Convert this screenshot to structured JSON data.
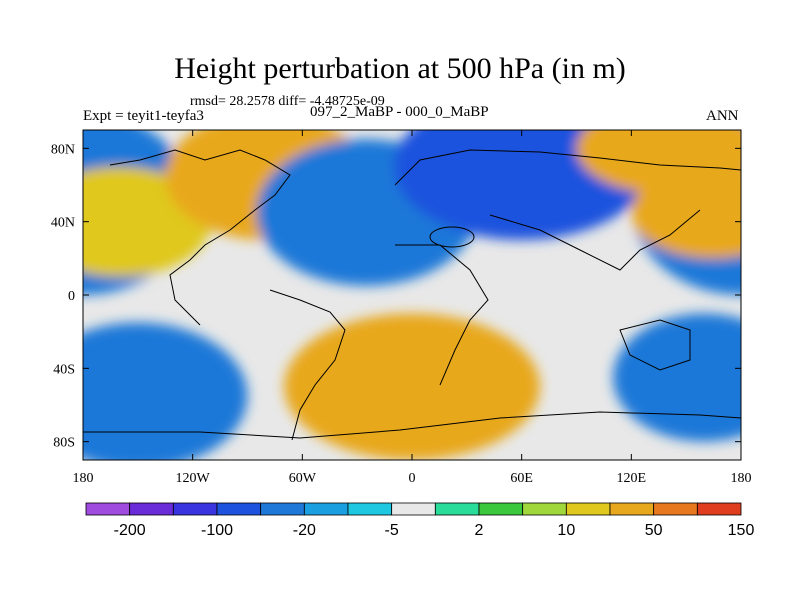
{
  "chart_data": {
    "type": "heatmap",
    "title": "Height perturbation at 500 hPa (in m)",
    "stats_text": "rmsd= 28.2578 diff= -4.48725e-09",
    "left_label": "Expt = teyit1-teyfa3",
    "center_label": "097_2_MaBP - 000_0_MaBP",
    "right_label": "ANN",
    "x_range": [
      -180,
      180
    ],
    "y_range": [
      -90,
      90
    ],
    "x_ticks": [
      {
        "value": -180,
        "label": "180"
      },
      {
        "value": -120,
        "label": "120W"
      },
      {
        "value": -60,
        "label": "60W"
      },
      {
        "value": 0,
        "label": "0"
      },
      {
        "value": 60,
        "label": "60E"
      },
      {
        "value": 120,
        "label": "120E"
      },
      {
        "value": 180,
        "label": "180"
      }
    ],
    "y_ticks": [
      {
        "value": 80,
        "label": "80N"
      },
      {
        "value": 40,
        "label": "40N"
      },
      {
        "value": 0,
        "label": "0"
      },
      {
        "value": -40,
        "label": "40S"
      },
      {
        "value": -80,
        "label": "80S"
      }
    ],
    "colorbar": {
      "colors": [
        "#a04be0",
        "#6a2bd8",
        "#3a34e0",
        "#1d52de",
        "#1d78d8",
        "#1aa0e0",
        "#1ec8e0",
        "#e8e8e8",
        "#2adc9a",
        "#3cc83c",
        "#a0d83c",
        "#e0c81e",
        "#e8a81e",
        "#e8781e",
        "#e03c1e"
      ],
      "labels": [
        {
          "after_index": 1,
          "text": "-200"
        },
        {
          "after_index": 3,
          "text": "-100"
        },
        {
          "after_index": 5,
          "text": "-20"
        },
        {
          "after_index": 7,
          "text": "-5"
        },
        {
          "after_index": 9,
          "text": "2"
        },
        {
          "after_index": 11,
          "text": "10"
        },
        {
          "after_index": 13,
          "text": "50"
        },
        {
          "after_index": 15,
          "text": "150"
        }
      ]
    },
    "field_blobs": [
      {
        "lon": -180,
        "lat": 50,
        "rx": 60,
        "ry": 50,
        "value": -90
      },
      {
        "lon": -160,
        "lat": 40,
        "rx": 50,
        "ry": 30,
        "value": 40
      },
      {
        "lon": -80,
        "lat": 65,
        "rx": 55,
        "ry": 35,
        "value": 80
      },
      {
        "lon": -25,
        "lat": 45,
        "rx": 60,
        "ry": 40,
        "value": -80
      },
      {
        "lon": 60,
        "lat": 70,
        "rx": 70,
        "ry": 40,
        "value": -110
      },
      {
        "lon": 140,
        "lat": 80,
        "rx": 50,
        "ry": 25,
        "value": 50
      },
      {
        "lon": 165,
        "lat": 45,
        "rx": 45,
        "ry": 25,
        "value": 60
      },
      {
        "lon": 0,
        "lat": -50,
        "rx": 70,
        "ry": 40,
        "value": 90
      },
      {
        "lon": -150,
        "lat": -55,
        "rx": 60,
        "ry": 40,
        "value": -90
      },
      {
        "lon": 160,
        "lat": -45,
        "rx": 50,
        "ry": 35,
        "value": -90
      }
    ]
  }
}
